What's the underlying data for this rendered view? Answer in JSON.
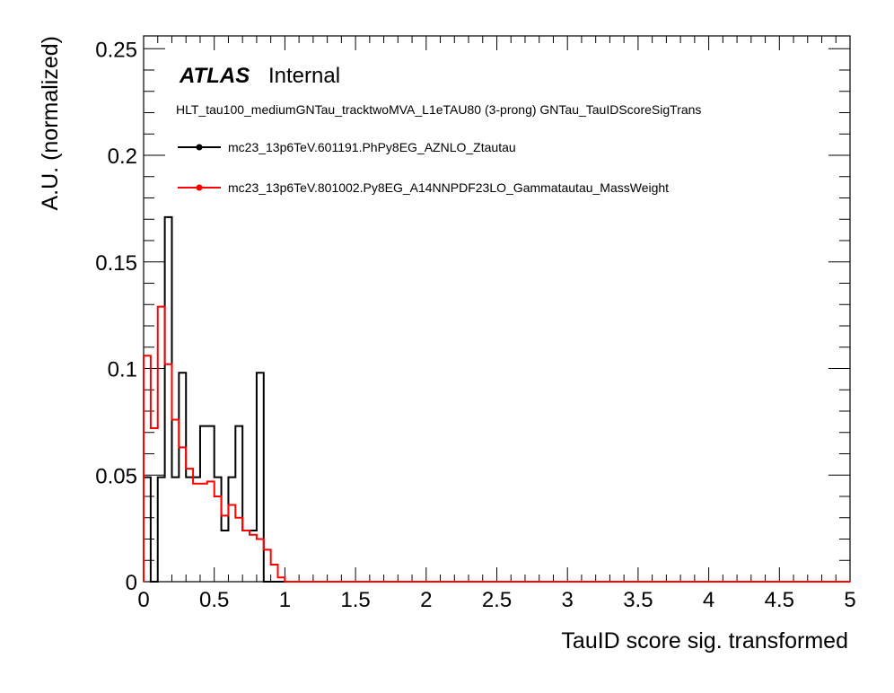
{
  "chart_data": {
    "type": "line",
    "xlabel": "TauID score sig. transformed",
    "ylabel": "A.U. (normalized)",
    "xlim": [
      0,
      5
    ],
    "ylim": [
      0,
      0.256
    ],
    "x_ticks": [
      "0",
      "0.5",
      "1",
      "1.5",
      "2",
      "2.5",
      "3",
      "3.5",
      "4",
      "4.5",
      "5"
    ],
    "y_ticks": [
      "0",
      "0.05",
      "0.1",
      "0.15",
      "0.2",
      "0.25"
    ],
    "grid": false,
    "legend_position": "top-left",
    "atlas_label": "ATLAS",
    "atlas_status": "Internal",
    "selection_label": "HLT_tau100_mediumGNTau_tracktwoMVA_L1eTAU80 (3-prong) GNTau_TauIDScoreSigTrans",
    "bin_width": 0.05,
    "series": [
      {
        "name": "mc23_13p6TeV.601191.PhPy8EG_AZNLO_Ztautau",
        "color": "#000000",
        "values": [
          0.049,
          0.0,
          0.049,
          0.171,
          0.049,
          0.098,
          0.049,
          0.049,
          0.073,
          0.073,
          0.049,
          0.024,
          0.049,
          0.073,
          0.024,
          0.024,
          0.098,
          0.0,
          0.0,
          0.0
        ]
      },
      {
        "name": "mc23_13p6TeV.801002.Py8EG_A14NNPDF23LO_Gammatautau_MassWeight",
        "color": "#ff0000",
        "values": [
          0.106,
          0.072,
          0.129,
          0.102,
          0.076,
          0.063,
          0.053,
          0.046,
          0.046,
          0.047,
          0.04,
          0.031,
          0.036,
          0.03,
          0.024,
          0.022,
          0.02,
          0.015,
          0.008,
          0.002
        ]
      }
    ]
  }
}
